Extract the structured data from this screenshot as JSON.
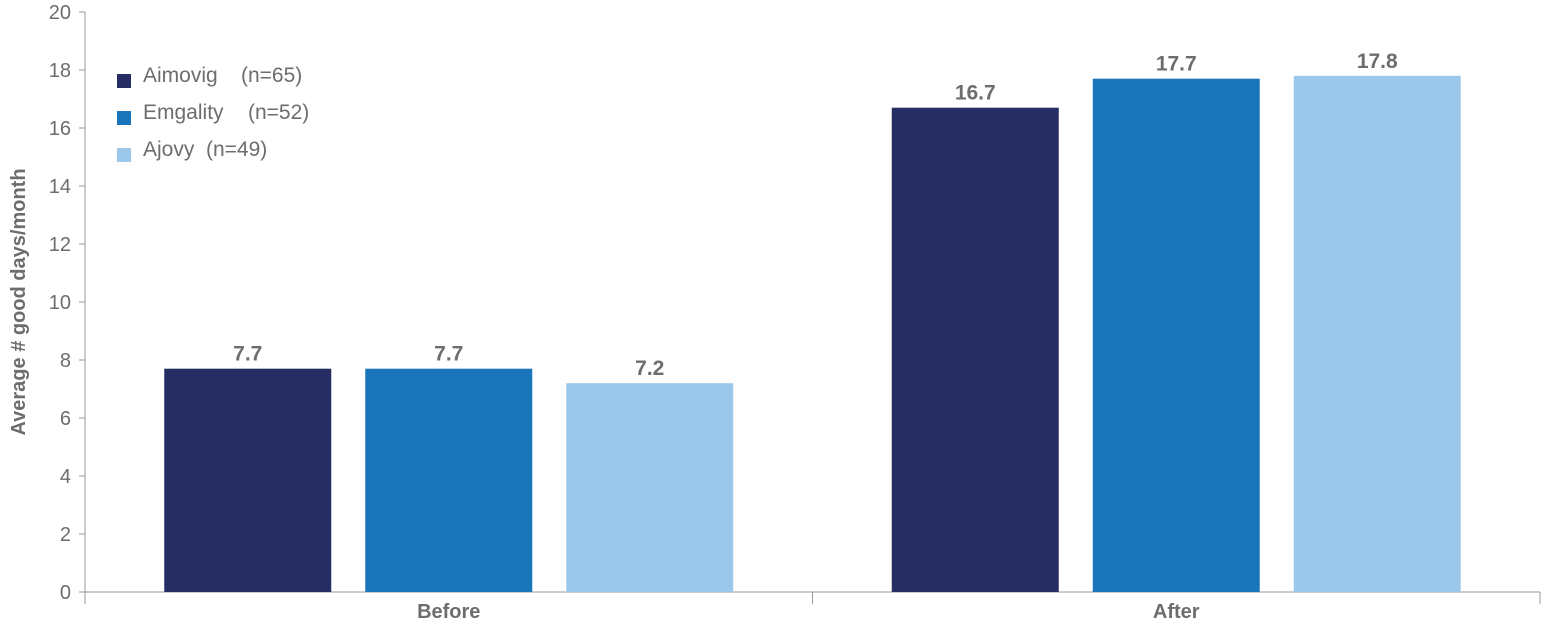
{
  "chart_data": {
    "type": "bar",
    "categories": [
      "Before",
      "After"
    ],
    "series": [
      {
        "name": "Aimovig",
        "n_label": "(n=65)",
        "color": "#262d63",
        "values": [
          7.7,
          16.7
        ],
        "labels": [
          "7.7",
          "16.7"
        ]
      },
      {
        "name": "Emgality",
        "n_label": "(n=52)",
        "color": "#1b75bb",
        "values": [
          7.7,
          17.7
        ],
        "labels": [
          "7.7",
          "17.7"
        ]
      },
      {
        "name": "Ajovy",
        "n_label": "(n=49)",
        "color": "#9bc8ea",
        "values": [
          7.2,
          17.8
        ],
        "labels": [
          "7.2",
          "17.8"
        ]
      }
    ],
    "ylabel": "Average # good days/month",
    "ylim": [
      0,
      20
    ],
    "yticks": [
      "0",
      "2",
      "4",
      "6",
      "8",
      "10",
      "12",
      "14",
      "16",
      "18",
      "20"
    ],
    "grid": false,
    "legend": "top-left"
  }
}
